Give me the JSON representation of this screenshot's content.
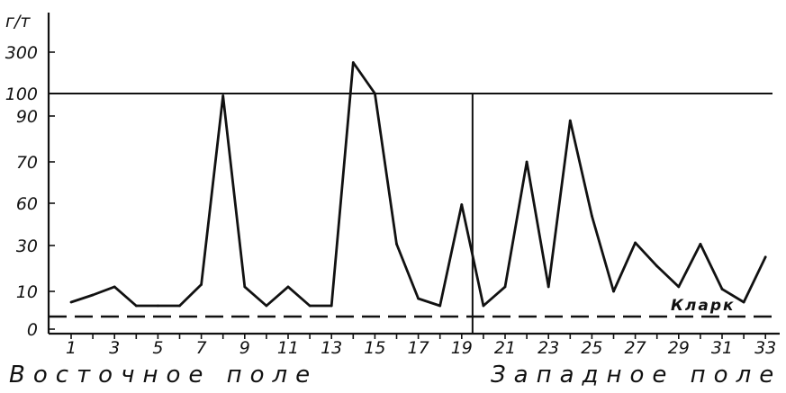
{
  "chart_data": {
    "type": "line",
    "ylabel": "г/т",
    "y_scale": "broken",
    "y_ticks": [
      "0",
      "10",
      "30",
      "60",
      "70",
      "90",
      "100",
      "300"
    ],
    "x_ticks": [
      "1",
      "3",
      "5",
      "7",
      "9",
      "11",
      "13",
      "15",
      "17",
      "19",
      "21",
      "23",
      "25",
      "27",
      "29",
      "31",
      "33"
    ],
    "x": [
      1,
      2,
      3,
      4,
      5,
      6,
      7,
      8,
      9,
      10,
      11,
      12,
      13,
      14,
      15,
      16,
      17,
      18,
      19,
      20,
      21,
      22,
      23,
      24,
      25,
      26,
      27,
      28,
      29,
      30,
      31,
      32,
      33
    ],
    "values": [
      7,
      9,
      12,
      6,
      6,
      6,
      13,
      99,
      12,
      6,
      12,
      6,
      6,
      250,
      100,
      31,
      8,
      6,
      59,
      6,
      12,
      70,
      12,
      88,
      51,
      10,
      32,
      21,
      12,
      31,
      11,
      7,
      25
    ],
    "reference_lines": [
      {
        "value": 100,
        "style": "solid"
      },
      {
        "value": 3,
        "style": "dashed",
        "label": "Кларк"
      }
    ],
    "divider_x": 19.5,
    "sections": [
      {
        "label": "Восточное поле",
        "from": 1,
        "to": 19
      },
      {
        "label": "Западное поле",
        "from": 20,
        "to": 33
      }
    ],
    "grid": false,
    "legend": "none"
  }
}
